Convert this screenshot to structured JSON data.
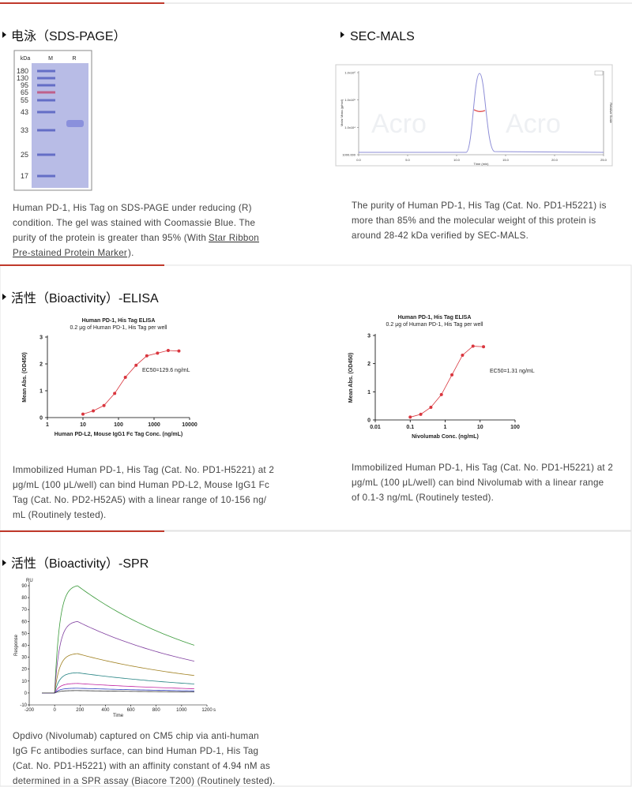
{
  "sds_page": {
    "title": "电泳（SDS-PAGE）",
    "lanes": [
      "kDa",
      "M",
      "R"
    ],
    "markers": [
      180,
      130,
      95,
      65,
      55,
      43,
      33,
      25,
      17
    ],
    "caption": [
      "Human PD-1, His Tag on SDS-PAGE under reducing (R)",
      "condition. The gel was stained with Coomassie Blue. The",
      "purity of the protein is greater than 95% (With "
    ],
    "link": [
      "Star Ribbon",
      "Pre-stained Protein Marker"
    ],
    "caption_end": ")."
  },
  "sec_mals": {
    "title": "SEC-MALS",
    "chart": {
      "type": "line",
      "xlabel": "Time (min)",
      "ylabel": "Molar Mass (g/mol)",
      "y2label": "Relative Scale",
      "watermark": "Acro",
      "xlim": [
        0,
        25
      ],
      "xticks": [
        {
          "value": 0,
          "label": "0.0"
        },
        {
          "value": 5,
          "label": "5.0"
        },
        {
          "value": 10,
          "label": "10.0"
        },
        {
          "value": 15,
          "label": "15.0"
        },
        {
          "value": 20,
          "label": "20.0"
        },
        {
          "value": 25,
          "label": "25.0"
        }
      ],
      "log_y": true,
      "ylim": [
        1000,
        1000000
      ],
      "yticks": [
        {
          "value": 1000,
          "label": "1000.000"
        },
        {
          "value": 10000,
          "label": "1.0x10⁴"
        },
        {
          "value": 100000,
          "label": "1.0x10⁵"
        },
        {
          "value": 1000000,
          "label": "1.0x10⁶"
        }
      ]
    },
    "caption": [
      "The purity of Human PD-1, His Tag (Cat. No. PD1-H5221) is",
      "more than 85% and the molecular weight of this protein is",
      "around 28-42 kDa verified by SEC-MALS."
    ]
  },
  "elisa": {
    "title": "活性（Bioactivity）-ELISA",
    "charts": [
      {
        "type": "scatter",
        "title": "Human PD-1, His Tag ELISA",
        "subtitle": "0.2 μg of Human PD-1, His Tag per well",
        "xlabel": "Human PD-L2, Mouse IgG1 Fc Tag Conc. (ng/mL)",
        "ylabel": "Mean Abs. (OD450)",
        "annotation": "EC50=129.6 ng/mL",
        "log_x": true,
        "xlim": [
          1,
          10000
        ],
        "xticks": [
          1,
          10,
          100,
          1000,
          10000
        ],
        "ylim": [
          0,
          3
        ],
        "yticks": [
          0,
          1,
          2,
          3
        ],
        "color": "#d9363e",
        "x": [
          10,
          19.5,
          39,
          78,
          156,
          312,
          625,
          1250,
          2500,
          5000
        ],
        "values": [
          0.13,
          0.25,
          0.45,
          0.9,
          1.5,
          1.95,
          2.3,
          2.4,
          2.5,
          2.48
        ]
      },
      {
        "type": "scatter",
        "title": "Human PD-1, His Tag ELISA",
        "subtitle": "0.2 μg of Human PD-1, His Tag per well",
        "xlabel": "Nivolumab Conc. (ng/mL)",
        "ylabel": "Mean Abs. (OD450)",
        "annotation": "EC50=1.31 ng/mL",
        "log_x": true,
        "xlim": [
          0.01,
          100
        ],
        "xticks": [
          0.01,
          0.1,
          1,
          10,
          100
        ],
        "ylim": [
          0,
          3
        ],
        "yticks": [
          0,
          1,
          2,
          3
        ],
        "color": "#d9363e",
        "x": [
          0.1,
          0.2,
          0.39,
          0.78,
          1.56,
          3.125,
          6.25,
          12.5
        ],
        "values": [
          0.1,
          0.2,
          0.45,
          0.9,
          1.6,
          2.3,
          2.62,
          2.6
        ]
      }
    ],
    "captions": [
      [
        "Immobilized Human PD-1, His Tag (Cat. No. PD1-H5221) at 2",
        "μg/mL (100 μL/well) can bind Human PD-L2, Mouse IgG1 Fc",
        "Tag (Cat. No. PD2-H52A5) with a linear range of 10-156 ng/",
        "mL (Routinely tested)."
      ],
      [
        "Immobilized Human PD-1, His Tag (Cat. No. PD1-H5221) at 2",
        "μg/mL (100 μL/well) can bind Nivolumab with a linear range",
        "of 0.1-3 ng/mL (Routinely tested)."
      ]
    ]
  },
  "spr": {
    "title": "活性（Bioactivity）-SPR",
    "chart": {
      "type": "line",
      "yunit": "RU",
      "ylabel": "Response",
      "xlabel": "Time",
      "xunit": "s",
      "xlim": [
        -200,
        1200
      ],
      "xticks": [
        -200,
        0,
        200,
        400,
        600,
        800,
        1000,
        1200
      ],
      "ylim": [
        -10,
        90
      ],
      "yticks": [
        -10,
        0,
        10,
        20,
        30,
        40,
        50,
        60,
        70,
        80,
        90
      ],
      "series": [
        {
          "color": "#3a9a3a",
          "values": [
            90
          ]
        },
        {
          "color": "#8040a0",
          "values": [
            60
          ]
        },
        {
          "color": "#a08020",
          "values": [
            33
          ]
        },
        {
          "color": "#208080",
          "values": [
            17
          ]
        },
        {
          "color": "#c020a0",
          "values": [
            8
          ]
        },
        {
          "color": "#3040c0",
          "values": [
            4
          ]
        },
        {
          "color": "#333333",
          "values": [
            2
          ]
        }
      ]
    },
    "caption": [
      "Opdivo (Nivolumab) captured on CM5 chip via anti-human",
      "IgG Fc antibodies surface, can bind Human PD-1, His Tag",
      "(Cat. No. PD1-H5221) with an affinity constant of 4.94 nM as",
      "determined in a SPR assay (Biacore T200) (Routinely tested)."
    ]
  }
}
